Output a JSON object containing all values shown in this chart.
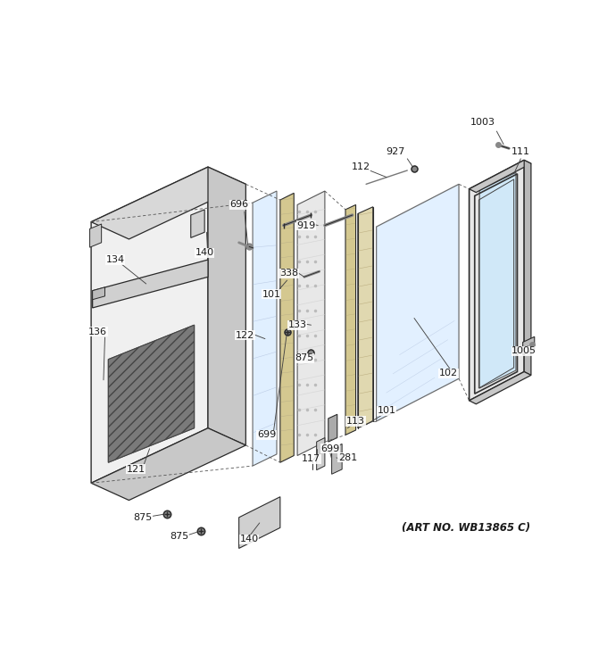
{
  "art_no": "(ART NO. WB13865 C)",
  "bg": "#ffffff",
  "lc": "#2a2a2a",
  "fig_width": 6.8,
  "fig_height": 7.25,
  "dpi": 100,
  "xmin": 0,
  "xmax": 680,
  "ymin": 0,
  "ymax": 725
}
